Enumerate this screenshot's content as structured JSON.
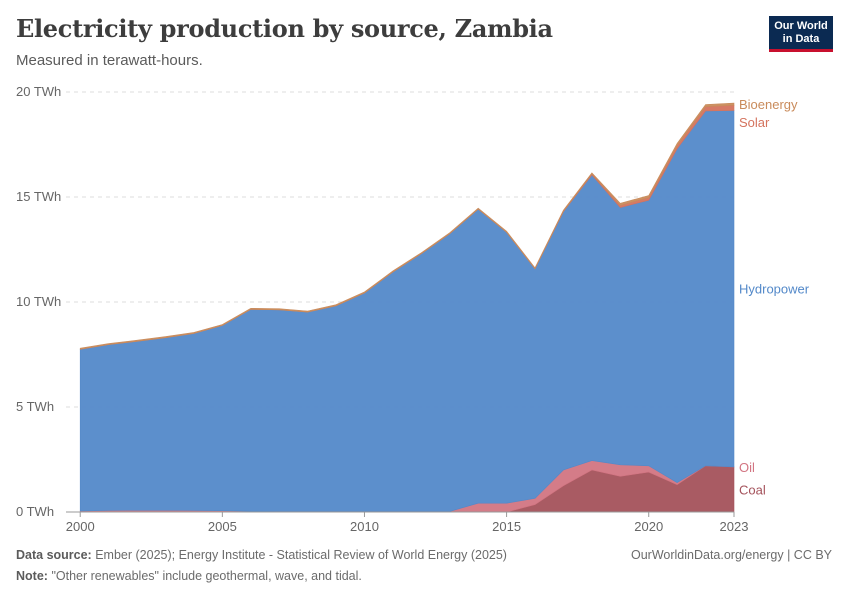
{
  "header": {
    "title": "Electricity production by source, Zambia",
    "subtitle": "Measured in terawatt-hours."
  },
  "logo": {
    "line1": "Our World",
    "line2": "in Data"
  },
  "footer": {
    "source_label": "Data source:",
    "source_text": "Ember (2025); Energy Institute - Statistical Review of World Energy (2025)",
    "note_label": "Note:",
    "note_text": "\"Other renewables\" include geothermal, wave, and tidal.",
    "attribution": "OurWorldinData.org/energy | CC BY"
  },
  "chart_data": {
    "type": "area",
    "stacked": true,
    "title": "Electricity production by source, Zambia",
    "subtitle": "Measured in terawatt-hours.",
    "x": [
      2000,
      2001,
      2002,
      2003,
      2004,
      2005,
      2006,
      2007,
      2008,
      2009,
      2010,
      2011,
      2012,
      2013,
      2014,
      2015,
      2016,
      2017,
      2018,
      2019,
      2020,
      2021,
      2022,
      2023
    ],
    "x_tick_labels": [
      "2000",
      "2005",
      "2010",
      "2015",
      "2020",
      "2023"
    ],
    "x_ticks": [
      2000,
      2005,
      2010,
      2015,
      2020,
      2023
    ],
    "x_range": [
      1999.5,
      2023
    ],
    "y_ticks": [
      0,
      5,
      10,
      15,
      20
    ],
    "y_tick_labels": [
      "0 TWh",
      "5 TWh",
      "10 TWh",
      "15 TWh",
      "20 TWh"
    ],
    "ylim": [
      0,
      20
    ],
    "unit": "TWh",
    "series": [
      {
        "name": "Coal",
        "color": "#a4525b",
        "values": [
          0,
          0,
          0,
          0,
          0,
          0,
          0,
          0,
          0,
          0,
          0,
          0,
          0,
          0,
          0,
          0,
          0.35,
          1.25,
          2.0,
          1.7,
          1.9,
          1.3,
          2.2,
          2.15
        ]
      },
      {
        "name": "Oil",
        "color": "#d27582",
        "values": [
          0.05,
          0.07,
          0.08,
          0.08,
          0.07,
          0.06,
          0.04,
          0.03,
          0.03,
          0.03,
          0.03,
          0.03,
          0.03,
          0.03,
          0.42,
          0.42,
          0.3,
          0.75,
          0.45,
          0.55,
          0.3,
          0.1,
          0,
          0
        ]
      },
      {
        "name": "Hydropower",
        "color": "#5389c9",
        "values": [
          7.7,
          7.9,
          8.05,
          8.22,
          8.43,
          8.82,
          9.61,
          9.6,
          9.49,
          9.79,
          10.4,
          11.4,
          12.27,
          13.22,
          14.0,
          12.9,
          10.93,
          12.3,
          13.6,
          12.25,
          12.65,
          15.9,
          16.9,
          16.97
        ]
      },
      {
        "name": "Solar",
        "color": "#d4735e",
        "values": [
          0,
          0,
          0,
          0,
          0,
          0,
          0,
          0,
          0,
          0,
          0,
          0,
          0,
          0,
          0,
          0,
          0,
          0.02,
          0.05,
          0.1,
          0.12,
          0.15,
          0.2,
          0.25
        ]
      },
      {
        "name": "Bioenergy",
        "color": "#c98b5b",
        "values": [
          0.05,
          0.05,
          0.05,
          0.05,
          0.05,
          0.05,
          0.05,
          0.05,
          0.05,
          0.05,
          0.05,
          0.05,
          0.05,
          0.05,
          0.05,
          0.05,
          0.05,
          0.05,
          0.05,
          0.1,
          0.1,
          0.1,
          0.1,
          0.1
        ]
      }
    ],
    "legend_labels": [
      "Bioenergy",
      "Solar",
      "Hydropower",
      "Oil",
      "Coal"
    ],
    "legend_placement": "right-inline"
  }
}
